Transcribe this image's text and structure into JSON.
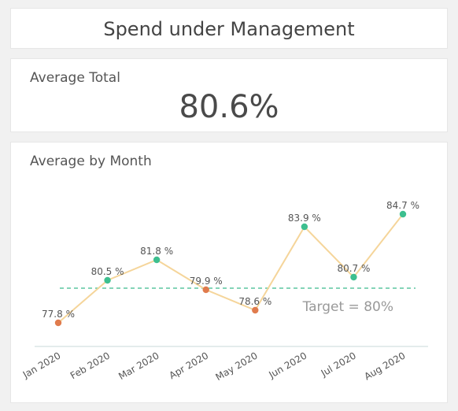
{
  "header": {
    "title": "Spend under Management"
  },
  "kpi": {
    "label": "Average Total",
    "value": "80.6%"
  },
  "chart_section": {
    "label": "Average by Month"
  },
  "colors": {
    "line": "#f5d59a",
    "above_target": "#3dbf8f",
    "below_target": "#e07b4d",
    "target_line": "#5cc6a0",
    "axis": "#c8d8da",
    "text": "#555555",
    "target_text": "#999999"
  },
  "chart_data": {
    "type": "line",
    "title": "Average by Month",
    "categories": [
      "Jan 2020",
      "Feb 2020",
      "Mar 2020",
      "Apr 2020",
      "May 2020",
      "Jun 2020",
      "Jul 2020",
      "Aug 2020"
    ],
    "values": [
      77.8,
      80.5,
      81.8,
      79.9,
      78.6,
      83.9,
      80.7,
      84.7
    ],
    "data_labels": [
      "77.8 %",
      "80.5 %",
      "81.8 %",
      "79.9 %",
      "78.6 %",
      "83.9 %",
      "80.7 %",
      "84.7 %"
    ],
    "target": {
      "value": 80,
      "label": "Target = 80%"
    },
    "ylim": [
      77.2,
      85.3
    ],
    "grid": false,
    "legend": "none",
    "xlabel": "",
    "ylabel": ""
  }
}
